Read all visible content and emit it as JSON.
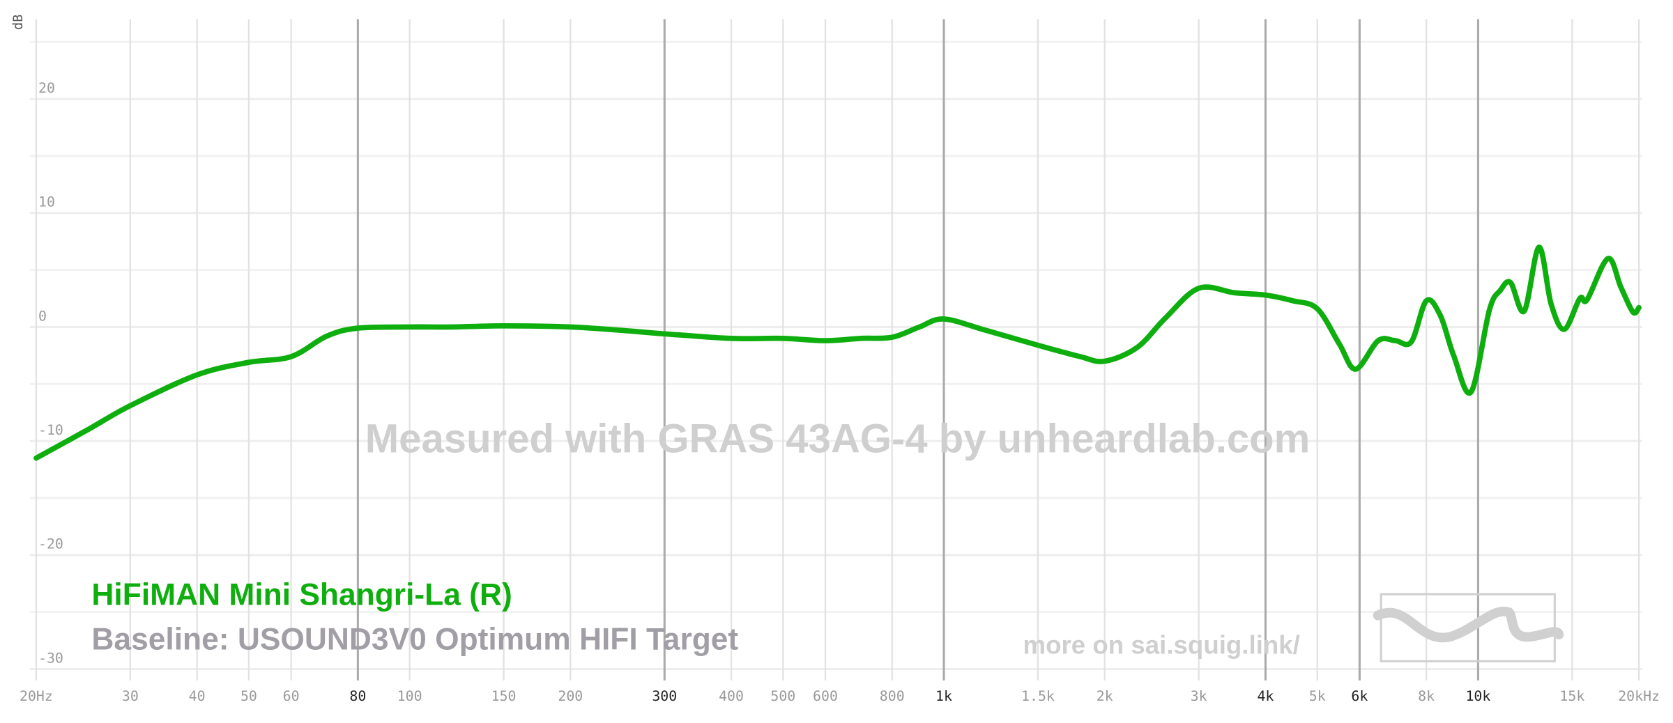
{
  "chart_data": {
    "type": "line",
    "y_label": "dB",
    "annotations": [
      "Measured with GRAS 43AG-4 by unheardlab.com",
      "more on sai.squig.link/"
    ],
    "baseline": "Baseline: USOUND3V0 Optimum HIFI Target",
    "xscale": "log",
    "xlim": [
      20,
      20000
    ],
    "ylim": [
      -31,
      27
    ],
    "xticks": [
      {
        "value": 20,
        "label": "20Hz"
      },
      30,
      40,
      50,
      60,
      80,
      100,
      150,
      200,
      300,
      400,
      500,
      600,
      800,
      {
        "value": 1000,
        "label": "1k"
      },
      {
        "value": 1500,
        "label": "1.5k"
      },
      {
        "value": 2000,
        "label": "2k"
      },
      {
        "value": 3000,
        "label": "3k"
      },
      {
        "value": 4000,
        "label": "4k"
      },
      {
        "value": 5000,
        "label": "5k"
      },
      {
        "value": 6000,
        "label": "6k"
      },
      {
        "value": 8000,
        "label": "8k"
      },
      {
        "value": 10000,
        "label": "10k"
      },
      {
        "value": 15000,
        "label": "15k"
      },
      {
        "value": 20000,
        "label": "20kHz"
      }
    ],
    "xticks_emphasis": [
      80,
      300,
      1000,
      4000,
      6000,
      10000
    ],
    "yticks": [
      20,
      10,
      0,
      -10,
      -20,
      -30
    ],
    "ygrid_minor": [
      25,
      15,
      5,
      -5,
      -15,
      -25
    ],
    "grid": true,
    "x": [
      20,
      25,
      30,
      40,
      50,
      60,
      70,
      80,
      100,
      120,
      150,
      200,
      250,
      300,
      400,
      500,
      600,
      700,
      800,
      900,
      1000,
      1200,
      1500,
      1800,
      2000,
      2300,
      2600,
      3000,
      3500,
      4000,
      4500,
      5000,
      5500,
      5900,
      6500,
      7000,
      7500,
      8000,
      8500,
      9000,
      9700,
      10500,
      11000,
      11500,
      12200,
      13000,
      13700,
      14500,
      15500,
      16000,
      17500,
      18500,
      19500,
      20000
    ],
    "series": [
      {
        "name": "HiFiMAN Mini Shangri-La (R)",
        "color": "#0fae0f",
        "values": [
          -11.5,
          -9,
          -6.9,
          -4.2,
          -3.1,
          -2.6,
          -0.8,
          -0.1,
          0,
          0,
          0.1,
          0,
          -0.3,
          -0.6,
          -1.0,
          -1.0,
          -1.2,
          -1.0,
          -0.9,
          0,
          0.7,
          -0.3,
          -1.6,
          -2.6,
          -3.0,
          -1.8,
          0.8,
          3.4,
          3.0,
          2.8,
          2.3,
          1.6,
          -1.5,
          -3.7,
          -1.2,
          -1.2,
          -1.3,
          2.3,
          1.0,
          -2.5,
          -5.7,
          1.5,
          3.2,
          3.9,
          1.4,
          7.0,
          2.0,
          -0.2,
          2.5,
          2.4,
          6.0,
          3.5,
          1.3,
          1.7
        ]
      }
    ]
  }
}
